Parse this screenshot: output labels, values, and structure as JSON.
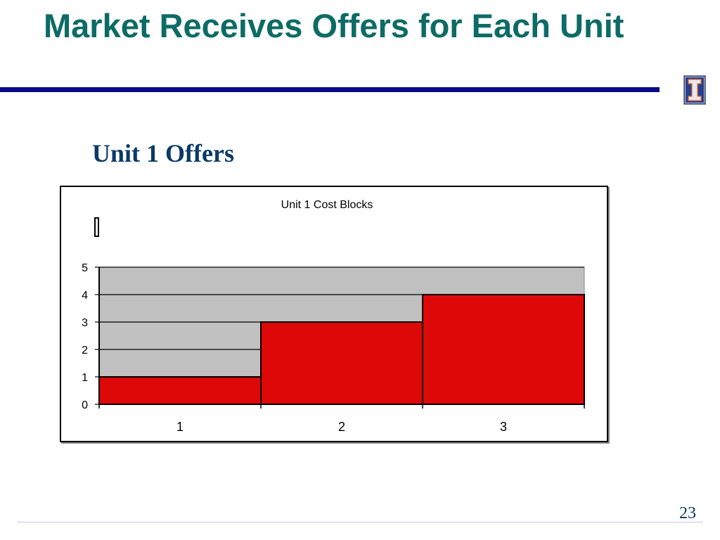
{
  "slide": {
    "title": "Market Receives Offers for Each Unit",
    "subtitle": "Unit 1 Offers",
    "page_number": "23"
  },
  "logo": {
    "icon": "illinois-block-i-icon"
  },
  "colors": {
    "title": "#0d6b66",
    "rule": "#0a0a8c",
    "subtitle": "#0a3a6a",
    "plot_area": "#c0c0c0",
    "bar": "#dd0808"
  },
  "chart_data": {
    "type": "bar",
    "title": "Unit 1  Cost Blocks",
    "xlabel": "",
    "ylabel": "",
    "categories": [
      "1",
      "2",
      "3"
    ],
    "values": [
      1,
      3,
      4
    ],
    "ylim": [
      0,
      5
    ],
    "y_ticks": [
      "0",
      "1",
      "2",
      "3",
      "4",
      "5"
    ],
    "grid": true,
    "legend": "none"
  }
}
